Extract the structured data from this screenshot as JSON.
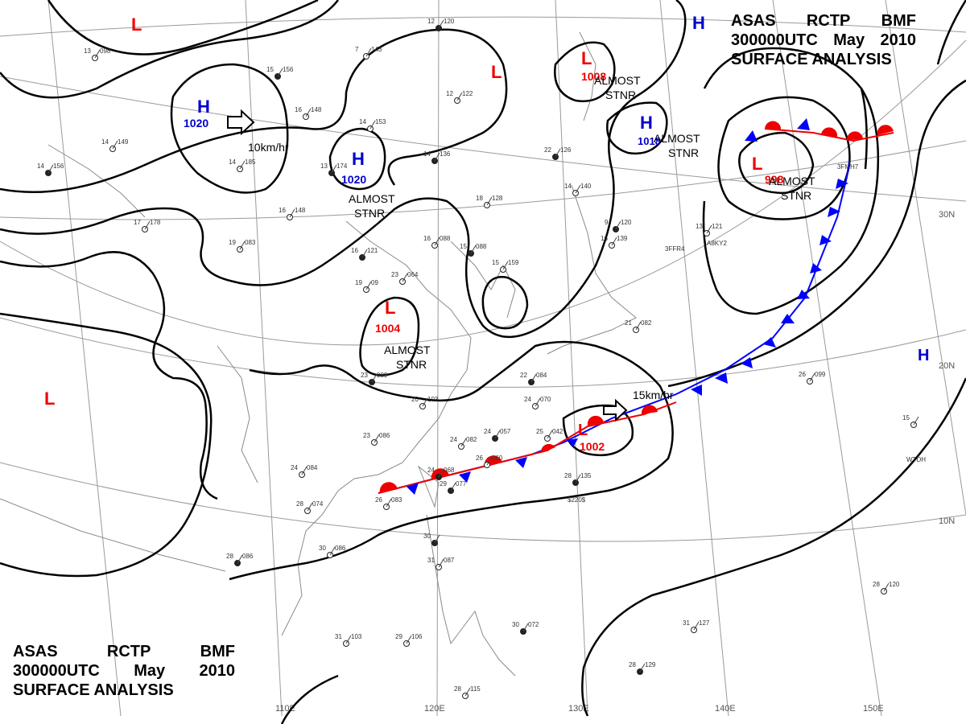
{
  "header": {
    "line1": [
      "ASAS",
      "RCTP",
      "BMF"
    ],
    "line2": [
      "300000UTC",
      "May",
      "2010"
    ],
    "line3": "SURFACE ANALYSIS"
  },
  "colors": {
    "high": "#0000cc",
    "low": "#ee0000",
    "cold_front": "#0000ff",
    "warm_front": "#ee0000",
    "isobar": "#000000",
    "grid": "#999999"
  },
  "longitude_labels": [
    "110E",
    "120E",
    "130E",
    "140E",
    "150E"
  ],
  "latitude_labels": [
    "30N",
    "20N",
    "10N"
  ],
  "pressure_centers": [
    {
      "type": "H",
      "value": "1020"
    },
    {
      "type": "H",
      "value": "1020"
    },
    {
      "type": "H",
      "value": "1018"
    },
    {
      "type": "H",
      "value": ""
    },
    {
      "type": "H",
      "value": ""
    },
    {
      "type": "L",
      "value": "1008"
    },
    {
      "type": "L",
      "value": "998"
    },
    {
      "type": "L",
      "value": "1004"
    },
    {
      "type": "L",
      "value": "1002"
    },
    {
      "type": "L",
      "value": ""
    },
    {
      "type": "L",
      "value": ""
    },
    {
      "type": "L",
      "value": ""
    }
  ],
  "annotations": {
    "almost": "ALMOST",
    "stnr": "STNR",
    "motion_west": "10km/hr",
    "motion_east": "15km/hr"
  },
  "stations": [
    {
      "t": "15",
      "p": "156"
    },
    {
      "t": "16",
      "p": "148"
    },
    {
      "t": "14",
      "p": "153"
    },
    {
      "t": "14",
      "p": "136"
    },
    {
      "t": "7",
      "p": "143"
    },
    {
      "t": "12",
      "p": "122"
    },
    {
      "t": "12",
      "p": "120"
    },
    {
      "t": "13",
      "p": "098"
    },
    {
      "t": "14",
      "p": "185"
    },
    {
      "t": "13",
      "p": "174"
    },
    {
      "t": "16",
      "p": "148"
    },
    {
      "t": "17",
      "p": "178"
    },
    {
      "t": "14",
      "p": "156"
    },
    {
      "t": "14",
      "p": "149"
    },
    {
      "t": "19",
      "p": "083"
    },
    {
      "t": "16",
      "p": "121"
    },
    {
      "t": "23",
      "p": "064"
    },
    {
      "t": "16",
      "p": "088"
    },
    {
      "t": "15",
      "p": "088"
    },
    {
      "t": "15",
      "p": "159"
    },
    {
      "t": "18",
      "p": "128"
    },
    {
      "t": "22",
      "p": "126"
    },
    {
      "t": "14",
      "p": "140"
    },
    {
      "t": "16",
      "p": "139"
    },
    {
      "t": "9",
      "p": "120"
    },
    {
      "t": "13",
      "p": "121"
    },
    {
      "t": "19",
      "p": "09"
    },
    {
      "t": "23",
      "p": "089"
    },
    {
      "t": "20",
      "p": "103"
    },
    {
      "t": "24",
      "p": "070"
    },
    {
      "t": "22",
      "p": "084"
    },
    {
      "t": "21",
      "p": "082"
    },
    {
      "t": "23",
      "p": "086"
    },
    {
      "t": "24",
      "p": "057"
    },
    {
      "t": "25",
      "p": "042"
    },
    {
      "t": "24",
      "p": "082"
    },
    {
      "t": "24",
      "p": "068"
    },
    {
      "t": "26",
      "p": "060"
    },
    {
      "t": "24",
      "p": "084"
    },
    {
      "t": "29",
      "p": "077"
    },
    {
      "t": "26",
      "p": "083"
    },
    {
      "t": "28",
      "p": "074"
    },
    {
      "t": "28",
      "p": "135"
    },
    {
      "t": "26",
      "p": "099"
    },
    {
      "t": "30",
      "p": "086"
    },
    {
      "t": "28",
      "p": "086"
    },
    {
      "t": "31",
      "p": "087"
    },
    {
      "t": "29",
      "p": "106"
    },
    {
      "t": "30",
      "p": "072"
    },
    {
      "t": "31",
      "p": "103"
    },
    {
      "t": "31",
      "p": "127"
    },
    {
      "t": "28",
      "p": "129"
    },
    {
      "t": "28",
      "p": "120"
    },
    {
      "t": "28",
      "p": "115"
    },
    {
      "t": "30",
      "p": ""
    },
    {
      "t": "15",
      "p": ""
    }
  ],
  "ship_ids": [
    "3FFR4",
    "A8KY2",
    "3FMH7",
    "WTDH",
    "$220$"
  ]
}
